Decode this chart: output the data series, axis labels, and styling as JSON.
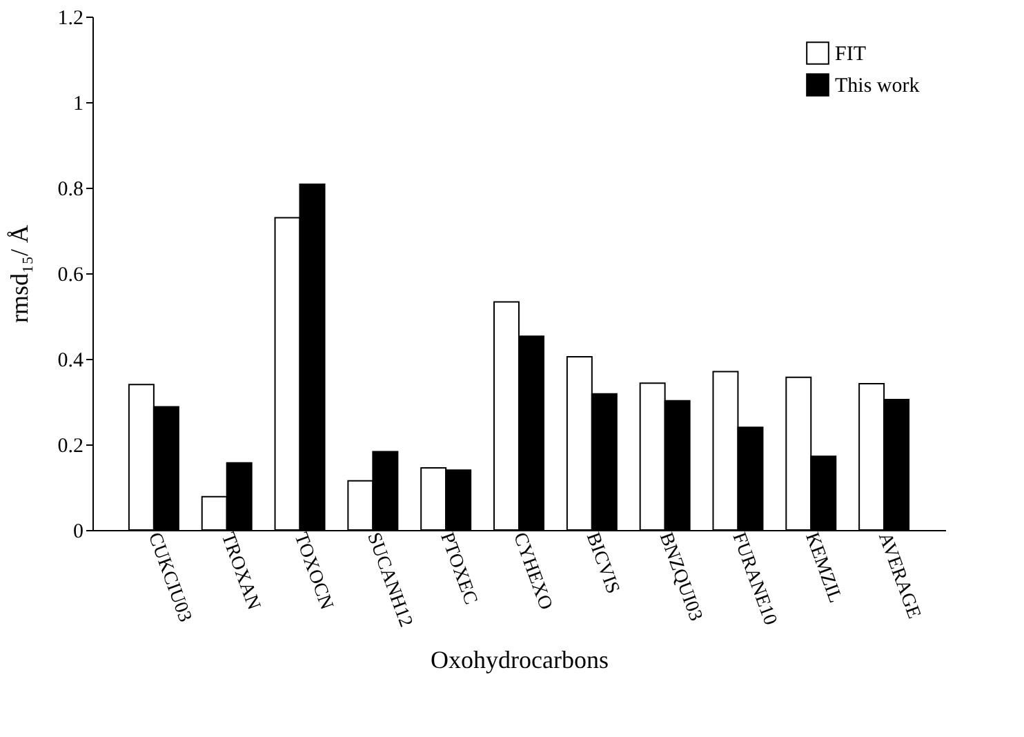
{
  "chart_data": {
    "type": "bar",
    "xlabel": "Oxohydrocarbons",
    "ylabel": "rmsd₁₅/ Å",
    "categories": [
      "CUKCIU03",
      "TROXAN",
      "TOXOCN",
      "SUCANH12",
      "PTOXEC",
      "CYHEXO",
      "BICVIS",
      "BNZQUI03",
      "FURANE10",
      "KEMZIL",
      "AVERAGE"
    ],
    "series": [
      {
        "name": "FIT",
        "color": "#ffffff",
        "values": [
          0.34,
          0.078,
          0.73,
          0.115,
          0.145,
          0.533,
          0.405,
          0.343,
          0.37,
          0.357,
          0.342
        ]
      },
      {
        "name": "This work",
        "color": "#000000",
        "values": [
          0.288,
          0.157,
          0.808,
          0.183,
          0.14,
          0.453,
          0.318,
          0.302,
          0.24,
          0.172,
          0.305
        ]
      }
    ],
    "ylim": [
      0,
      1.2
    ],
    "yticks": [
      0,
      0.2,
      0.4,
      0.6,
      0.8,
      1,
      1.2
    ],
    "grid": false,
    "legend": "top right"
  }
}
